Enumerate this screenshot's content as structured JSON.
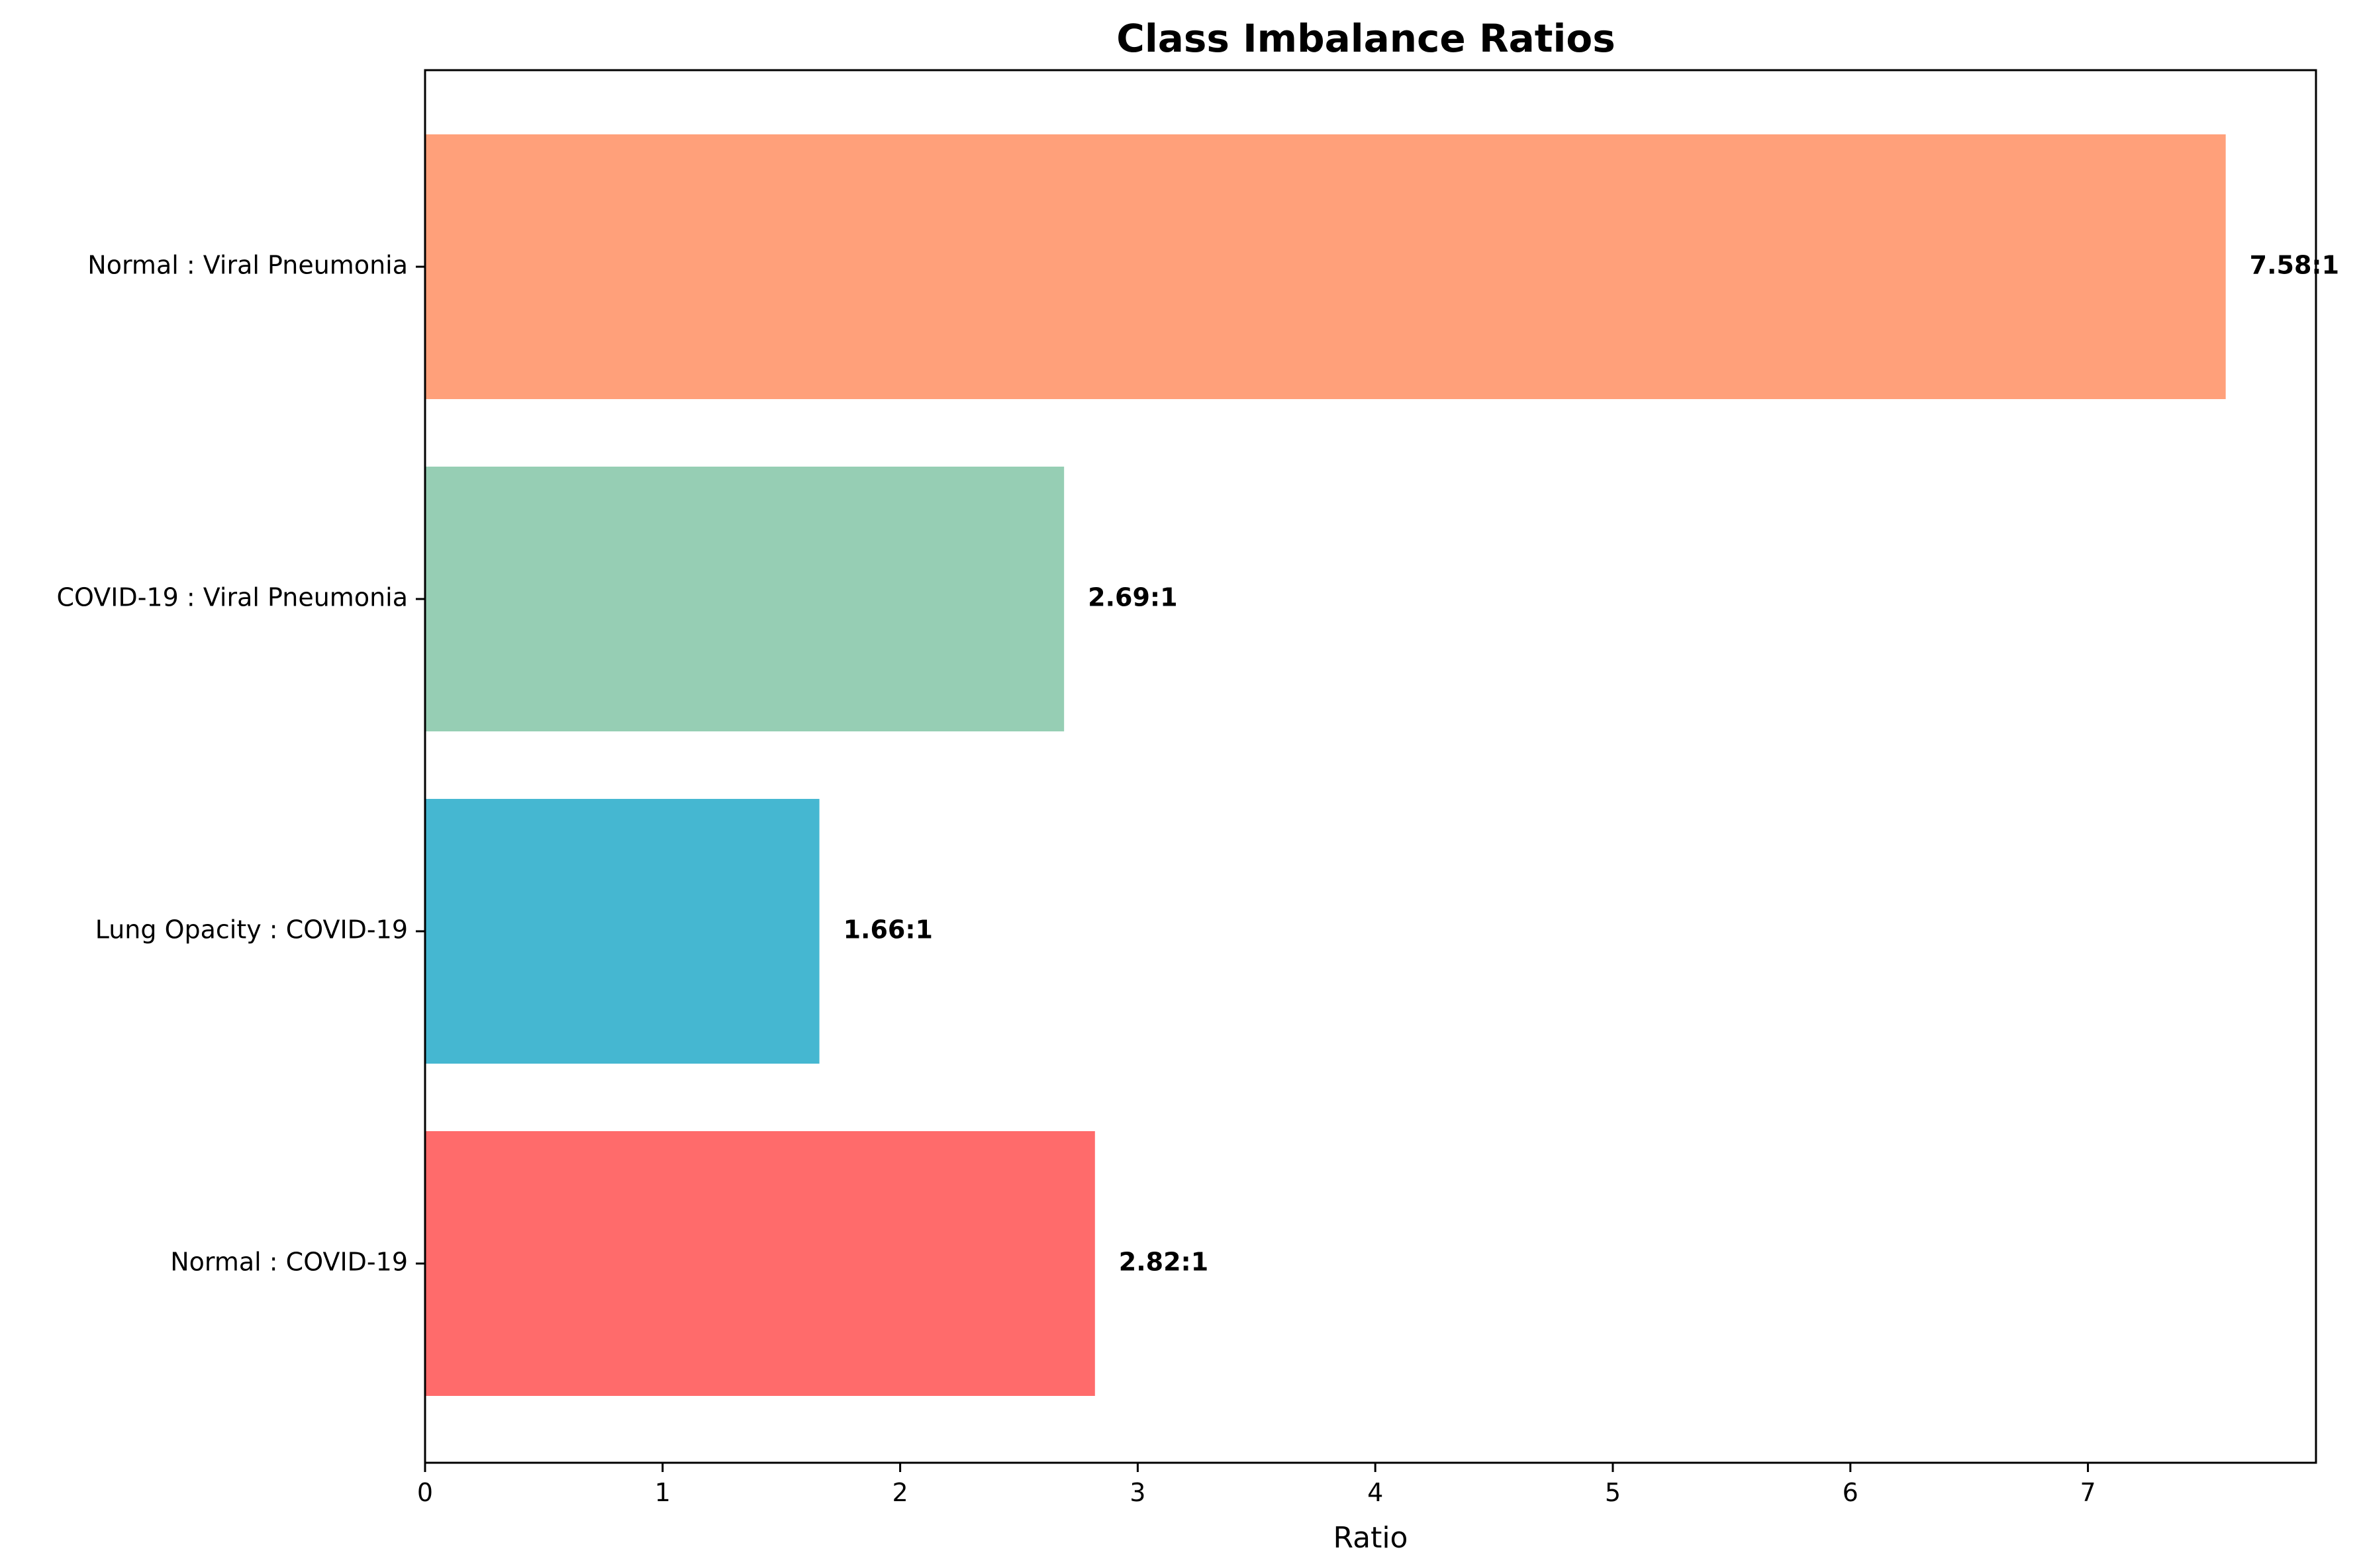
{
  "chart_data": {
    "type": "bar",
    "orientation": "horizontal",
    "title": "Class Imbalance Ratios",
    "xlabel": "Ratio",
    "ylabel": "",
    "xlim": [
      0,
      7.96
    ],
    "xticks": [
      0,
      1,
      2,
      3,
      4,
      5,
      6,
      7
    ],
    "grid": false,
    "categories": [
      "Normal : COVID-19",
      "Lung Opacity : COVID-19",
      "COVID-19 : Viral Pneumonia",
      "Normal : Viral Pneumonia"
    ],
    "values": [
      2.82,
      1.66,
      2.69,
      7.58
    ],
    "value_labels": [
      "2.82:1",
      "1.66:1",
      "2.69:1",
      "7.58:1"
    ],
    "colors": [
      "#ff6b6b",
      "#45b7d1",
      "#96ceb4",
      "#ffa07a"
    ]
  }
}
